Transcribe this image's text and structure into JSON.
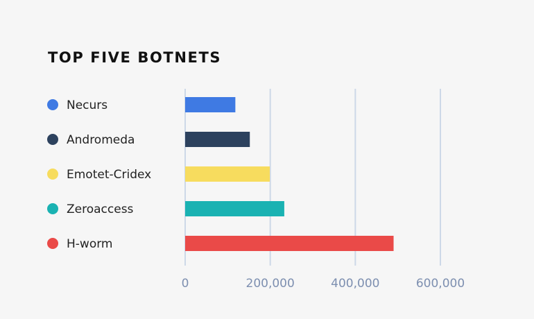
{
  "chart_data": {
    "type": "bar",
    "orientation": "horizontal",
    "title": "TOP FIVE BOTNETS",
    "categories": [
      "Necurs",
      "Andromeda",
      "Emotet-Cridex",
      "Zeroaccess",
      "H-worm"
    ],
    "values": [
      118000,
      152000,
      199000,
      233000,
      490000
    ],
    "colors": [
      "#3f7ae3",
      "#2d425e",
      "#f7dc5e",
      "#1ab2b2",
      "#ea4a48"
    ],
    "xlim": [
      0,
      600000
    ],
    "xticks": [
      0,
      200000,
      400000,
      600000
    ],
    "xtick_labels": [
      "0",
      "200,000",
      "400,000",
      "600,000"
    ],
    "grid": true,
    "gridline_color": "#cdd8e8",
    "legend": "left"
  }
}
